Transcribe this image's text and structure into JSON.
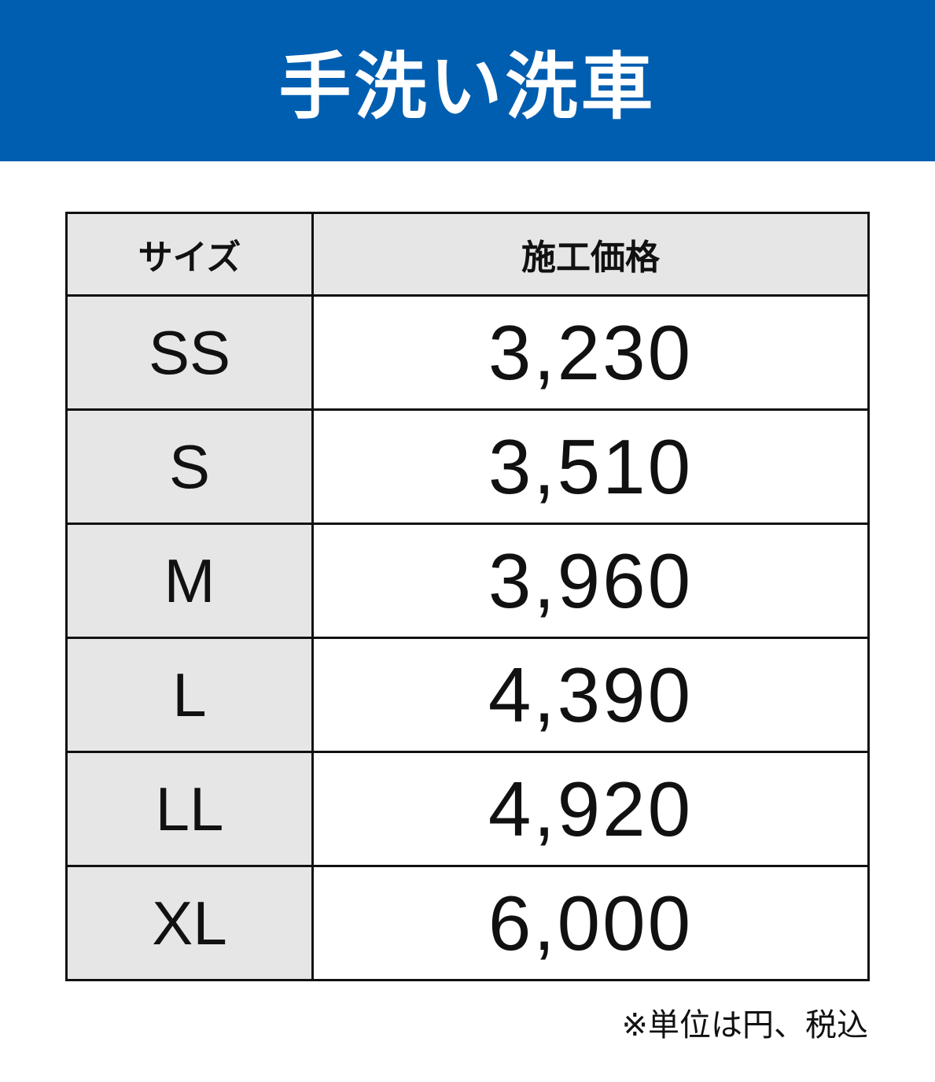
{
  "title": "手洗い洗車",
  "brand_color": "#005eb0",
  "table": {
    "headers": [
      "サイズ",
      "施工価格"
    ],
    "rows": [
      {
        "size": "SS",
        "price": "3,230"
      },
      {
        "size": "S",
        "price": "3,510"
      },
      {
        "size": "M",
        "price": "3,960"
      },
      {
        "size": "L",
        "price": "4,390"
      },
      {
        "size": "LL",
        "price": "4,920"
      },
      {
        "size": "XL",
        "price": "6,000"
      }
    ]
  },
  "note": "※単位は円、税込"
}
